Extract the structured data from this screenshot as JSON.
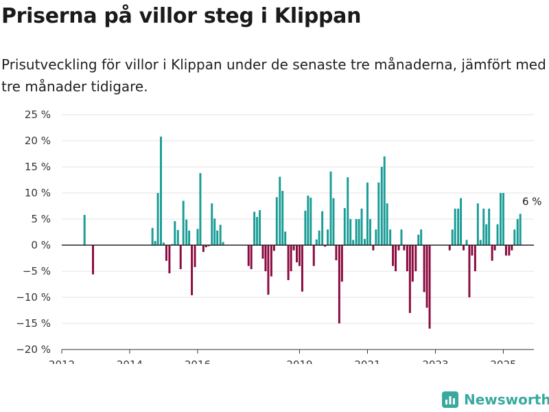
{
  "header": {
    "title": "Priserna på villor steg i Klippan",
    "subtitle": "Prisutveckling för villor i Klippan under de senaste tre månaderna, jämfört med tre månader tidigare."
  },
  "brand": {
    "name": "Newsworthy",
    "icon": "bar-chart-logo-icon",
    "color": "#39a99f"
  },
  "chart_data": {
    "type": "bar",
    "ylim": [
      -20,
      25
    ],
    "yticks": [
      -20,
      -15,
      -10,
      -5,
      0,
      5,
      10,
      15,
      20,
      25
    ],
    "ytick_suffix": " %",
    "xlim": [
      2012.0,
      2025.9
    ],
    "xticks": [
      2012,
      2014,
      2016,
      2019,
      2021,
      2023,
      2025
    ],
    "grid": true,
    "colors": {
      "positive": "#1a9c96",
      "negative": "#8b0a3f",
      "grid": "#e3e3e3",
      "zero_line": "#222222"
    },
    "annotation": {
      "text": "6 %",
      "x": 2025.4,
      "y": 6
    },
    "x": [
      2012.67,
      2012.92,
      2014.67,
      2014.75,
      2014.83,
      2014.92,
      2015.0,
      2015.08,
      2015.17,
      2015.25,
      2015.33,
      2015.42,
      2015.5,
      2015.58,
      2015.67,
      2015.75,
      2015.83,
      2015.92,
      2016.0,
      2016.08,
      2016.17,
      2016.25,
      2016.33,
      2016.42,
      2016.5,
      2016.58,
      2016.67,
      2016.75,
      2017.5,
      2017.58,
      2017.67,
      2017.75,
      2017.83,
      2017.92,
      2018.0,
      2018.08,
      2018.17,
      2018.25,
      2018.33,
      2018.42,
      2018.5,
      2018.58,
      2018.67,
      2018.75,
      2018.83,
      2018.92,
      2019.0,
      2019.08,
      2019.17,
      2019.25,
      2019.33,
      2019.42,
      2019.5,
      2019.58,
      2019.67,
      2019.75,
      2019.83,
      2019.92,
      2020.0,
      2020.08,
      2020.17,
      2020.25,
      2020.33,
      2020.42,
      2020.5,
      2020.58,
      2020.67,
      2020.75,
      2020.83,
      2020.92,
      2021.0,
      2021.08,
      2021.17,
      2021.25,
      2021.33,
      2021.42,
      2021.5,
      2021.58,
      2021.67,
      2021.75,
      2021.83,
      2021.92,
      2022.0,
      2022.08,
      2022.17,
      2022.25,
      2022.33,
      2022.42,
      2022.5,
      2022.58,
      2022.67,
      2022.75,
      2022.83,
      2023.42,
      2023.5,
      2023.58,
      2023.67,
      2023.75,
      2023.83,
      2023.92,
      2024.0,
      2024.08,
      2024.17,
      2024.25,
      2024.33,
      2024.42,
      2024.5,
      2024.58,
      2024.67,
      2024.75,
      2024.83,
      2024.92,
      2025.0,
      2025.08,
      2025.17,
      2025.25,
      2025.33,
      2025.42,
      2025.5
    ],
    "values": [
      5.8,
      -5.6,
      3.3,
      0.8,
      10.0,
      20.8,
      0.5,
      -3.0,
      -5.4,
      0.2,
      4.6,
      2.9,
      -4.6,
      8.5,
      4.9,
      2.8,
      -9.6,
      -4.2,
      3.1,
      13.8,
      -1.3,
      -0.4,
      -0.2,
      8.0,
      5.1,
      2.8,
      3.9,
      0.6,
      -4.0,
      -4.6,
      6.4,
      5.4,
      6.7,
      -2.6,
      -5.0,
      -9.5,
      -6.0,
      -1.1,
      9.2,
      13.1,
      10.4,
      2.6,
      -6.7,
      -5.0,
      -1.0,
      -3.3,
      -4.0,
      -8.9,
      6.6,
      9.5,
      9.1,
      -4.0,
      1.1,
      2.8,
      6.5,
      -0.3,
      3.0,
      14.1,
      9.0,
      -2.9,
      -15.0,
      -7.0,
      7.1,
      13.0,
      5.0,
      1.0,
      5.0,
      5.0,
      7.0,
      1.2,
      12.0,
      5.0,
      -1.0,
      3.0,
      12.0,
      15.0,
      17.0,
      8.0,
      3.0,
      -4.0,
      -5.0,
      -1.0,
      3.0,
      -1.0,
      -5.0,
      -13.0,
      -7.0,
      -5.0,
      2.0,
      3.0,
      -9.0,
      -12.0,
      -16.0,
      -1.0,
      3.0,
      7.0,
      7.0,
      9.0,
      -1.0,
      1.0,
      -10.0,
      -2.0,
      -5.0,
      8.0,
      1.0,
      7.0,
      4.0,
      7.0,
      -3.0,
      -1.0,
      4.0,
      10.0,
      10.0,
      -2.0,
      -2.0,
      -1.0,
      3.0,
      5.0,
      6.0
    ]
  }
}
